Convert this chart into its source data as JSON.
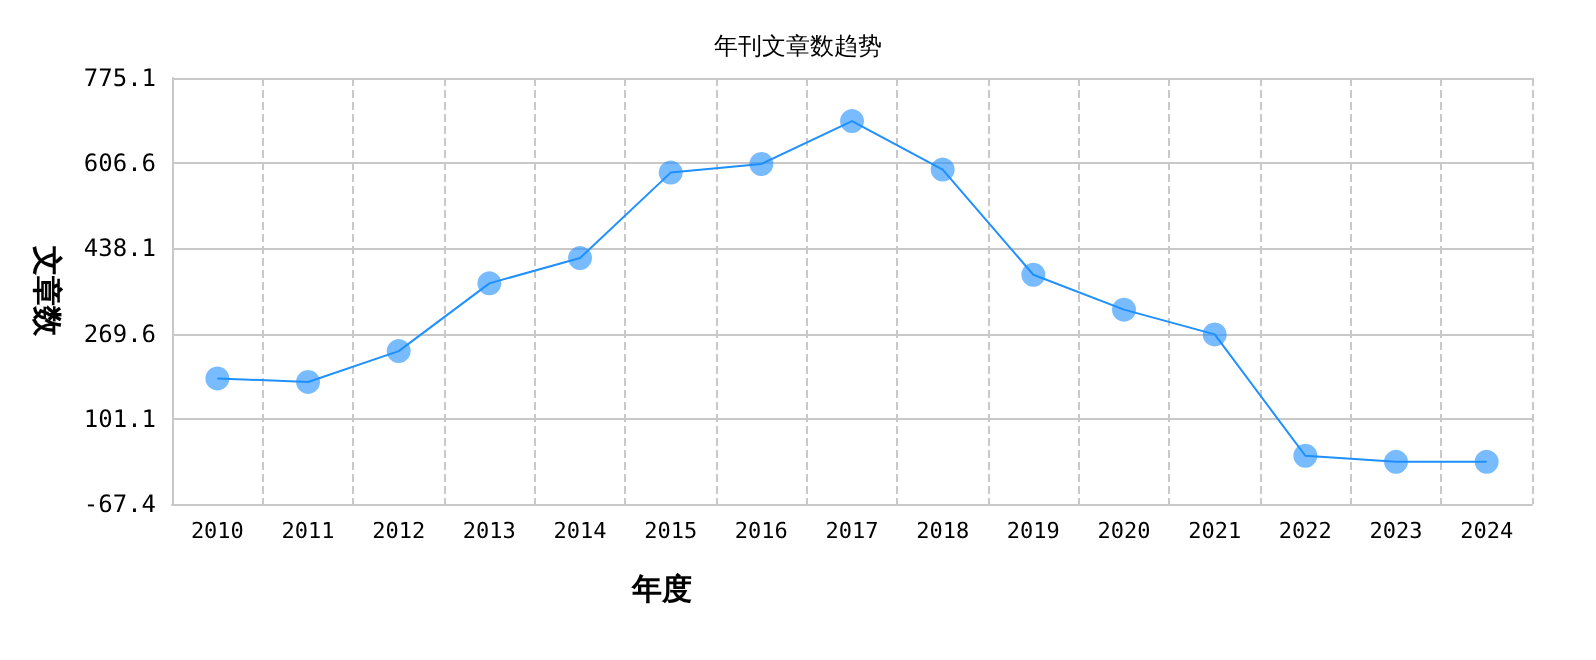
{
  "chart_data": {
    "type": "line",
    "title": "年刊文章数趋势",
    "xlabel": "年度",
    "ylabel": "文章数",
    "categories": [
      "2010",
      "2011",
      "2012",
      "2013",
      "2014",
      "2015",
      "2016",
      "2017",
      "2018",
      "2019",
      "2020",
      "2021",
      "2022",
      "2023",
      "2024"
    ],
    "series": [
      {
        "color": "#1e90ff",
        "values": [
          181,
          174,
          235,
          369,
          419,
          588,
          605,
          690,
          594,
          386,
          317,
          268,
          28,
          16,
          16
        ]
      }
    ],
    "ylim": [
      -67.4,
      775.1
    ],
    "yticks": [
      -67.4,
      101.1,
      269.6,
      438.1,
      606.6,
      775.1
    ],
    "grid": true,
    "marker": "circle",
    "line_style": "solid"
  }
}
